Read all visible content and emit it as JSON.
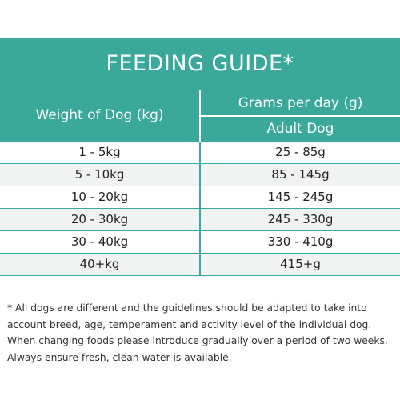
{
  "title": "FEEDING GUIDE*",
  "headers": {
    "weight": "Weight of Dog (kg)",
    "grams": "Grams per day (g)",
    "adult": "Adult Dog"
  },
  "rows": [
    {
      "weight": "1 - 5kg",
      "grams": "25 - 85g"
    },
    {
      "weight": "5 - 10kg",
      "grams": "85 - 145g"
    },
    {
      "weight": "10 - 20kg",
      "grams": "145 - 245g"
    },
    {
      "weight": "20 - 30kg",
      "grams": "245 - 330g"
    },
    {
      "weight": "30 - 40kg",
      "grams": "330 - 410g"
    },
    {
      "weight": "40+kg",
      "grams": "415+g"
    }
  ],
  "footnote": "* All dogs are different and the guidelines should be adapted to take into account breed, age, temperament and activity level of the individual dog. When changing foods please introduce gradually over a period of two weeks. Always ensure fresh, clean water is available.",
  "colors": {
    "accent": "#3aa89b",
    "row_alt": "#f0f3f2",
    "text": "#222222"
  }
}
